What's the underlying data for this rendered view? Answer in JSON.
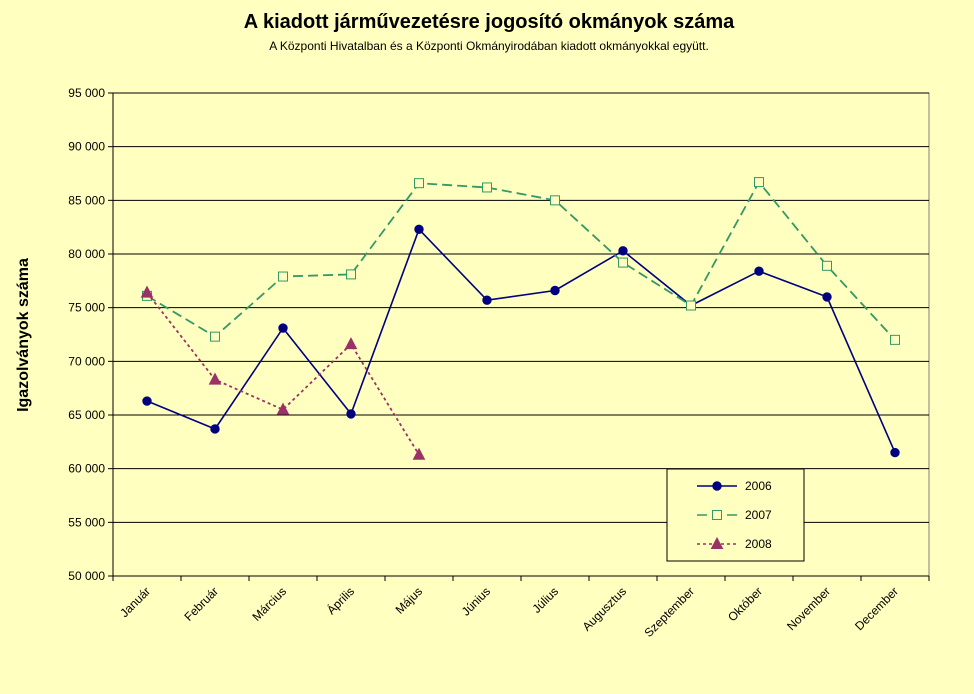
{
  "chart_data": {
    "type": "line",
    "title": "A  kiadott járművezetésre  jogosító okmányok száma",
    "subtitle": "A  Központi Hivatalban és a Központi Okmányirodában kiadott okmányokkal együtt.",
    "xlabel": "",
    "ylabel": "Igazolványok száma",
    "ylim": [
      50000,
      95000
    ],
    "y_ticks": [
      50000,
      55000,
      60000,
      65000,
      70000,
      75000,
      80000,
      85000,
      90000,
      95000
    ],
    "y_tick_labels": [
      "50 000",
      "55 000",
      "60 000",
      "65 000",
      "70 000",
      "75 000",
      "80 000",
      "85 000",
      "90 000",
      "95 000"
    ],
    "grid": true,
    "legend_position": "bottom-right",
    "categories": [
      "Január",
      "Február",
      "Március",
      "Április",
      "Május",
      "Június",
      "Július",
      "Augusztus",
      "Szeptember",
      "Október",
      "November",
      "December"
    ],
    "series": [
      {
        "name": "2006",
        "color": "#000080",
        "style": "solid",
        "marker": "circle",
        "values": [
          66300,
          63700,
          73100,
          65100,
          82300,
          75700,
          76600,
          80300,
          75200,
          78400,
          76000,
          61500
        ]
      },
      {
        "name": "2007",
        "color": "#339966",
        "style": "dashed",
        "marker": "square",
        "values": [
          76100,
          72300,
          77900,
          78100,
          86600,
          86200,
          85000,
          79200,
          75200,
          86700,
          78900,
          72000
        ]
      },
      {
        "name": "2008",
        "color": "#993366",
        "style": "dotted",
        "marker": "triangle",
        "values": [
          76400,
          68300,
          65500,
          71600,
          61300,
          null,
          null,
          null,
          null,
          null,
          null,
          null
        ]
      }
    ]
  }
}
